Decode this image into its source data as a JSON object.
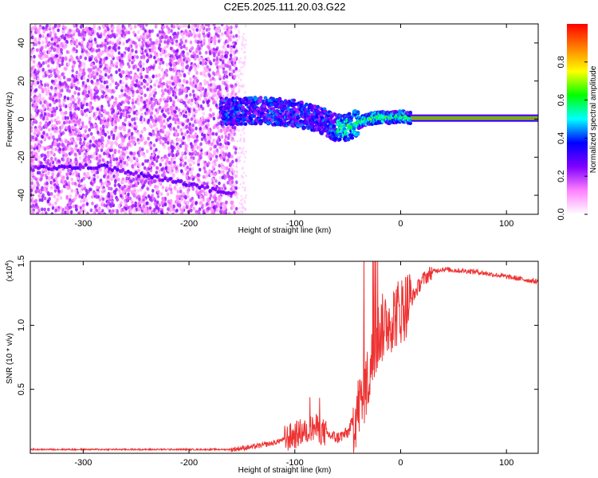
{
  "title": "C2E5.2025.111.20.03.G22",
  "chart_data": [
    {
      "type": "heatmap",
      "xlabel": "Height of straight line (km)",
      "ylabel": "Frequency (Hz)",
      "xlim": [
        -350,
        130
      ],
      "ylim": [
        -50,
        50
      ],
      "x_ticks": [
        -300,
        -200,
        -100,
        0,
        100
      ],
      "x_tick_labels": [
        "-300",
        "-200",
        "-100",
        "0",
        "100"
      ],
      "y_ticks": [
        -40,
        -20,
        0,
        20,
        40
      ],
      "y_tick_labels": [
        "-40",
        "-20",
        "0",
        "20",
        "40"
      ],
      "colorbar": {
        "label": "Normalized spectral amplitude",
        "range": [
          0,
          1
        ],
        "ticks": [
          0.0,
          0.2,
          0.4,
          0.6,
          0.8
        ],
        "tick_labels": [
          "0.0",
          "0.2",
          "0.4",
          "0.6",
          "0.8"
        ],
        "colors": [
          "#ffffff",
          "#ff80ff",
          "#8000ff",
          "#0000ff",
          "#00ffff",
          "#00ff00",
          "#ffff00",
          "#ff8000",
          "#ff0000"
        ]
      },
      "ridge": {
        "x": [
          -160,
          -140,
          -120,
          -100,
          -80,
          -70,
          -60,
          -50,
          -40,
          -30,
          -20,
          -10,
          0,
          10,
          50,
          100,
          130
        ],
        "y": [
          4,
          4.5,
          4,
          3,
          0,
          -2,
          -5,
          -4,
          -2,
          0,
          1,
          0.5,
          1.5,
          0.5,
          0.5,
          0.5,
          0.5
        ]
      },
      "secondary_track": {
        "x": [
          -350,
          -300,
          -280,
          -250,
          -200,
          -160
        ],
        "y": [
          -26,
          -25,
          -25,
          -29,
          -34,
          -40
        ]
      }
    },
    {
      "type": "line",
      "xlabel": "Height of straight line (km)",
      "ylabel": "SNR (10 * v/v)",
      "yscale_label": "(x10",
      "yscale_exponent": "4",
      "yscale_close": ")",
      "xlim": [
        -350,
        130
      ],
      "ylim": [
        0,
        1.5
      ],
      "x_ticks": [
        -300,
        -200,
        -100,
        0,
        100
      ],
      "x_tick_labels": [
        "-300",
        "-200",
        "-100",
        "0",
        "100"
      ],
      "y_ticks": [
        0.5,
        1.0,
        1.5
      ],
      "y_tick_labels": [
        "0.5",
        "1.0",
        "1.5"
      ],
      "color": "#ee3333",
      "series": [
        {
          "x": [
            -350,
            -300,
            -250,
            -200,
            -160,
            -140,
            -120,
            -100,
            -90,
            -80,
            -70,
            -60,
            -50,
            -40,
            -30,
            -25,
            -20,
            -10,
            0,
            10,
            20,
            30,
            40,
            50,
            70,
            100,
            130
          ],
          "values": [
            0.03,
            0.03,
            0.03,
            0.03,
            0.03,
            0.05,
            0.08,
            0.14,
            0.18,
            0.2,
            0.15,
            0.12,
            0.16,
            0.35,
            0.6,
            0.8,
            0.95,
            1.05,
            1.12,
            1.2,
            1.35,
            1.42,
            1.44,
            1.43,
            1.42,
            1.38,
            1.34
          ]
        }
      ]
    }
  ]
}
